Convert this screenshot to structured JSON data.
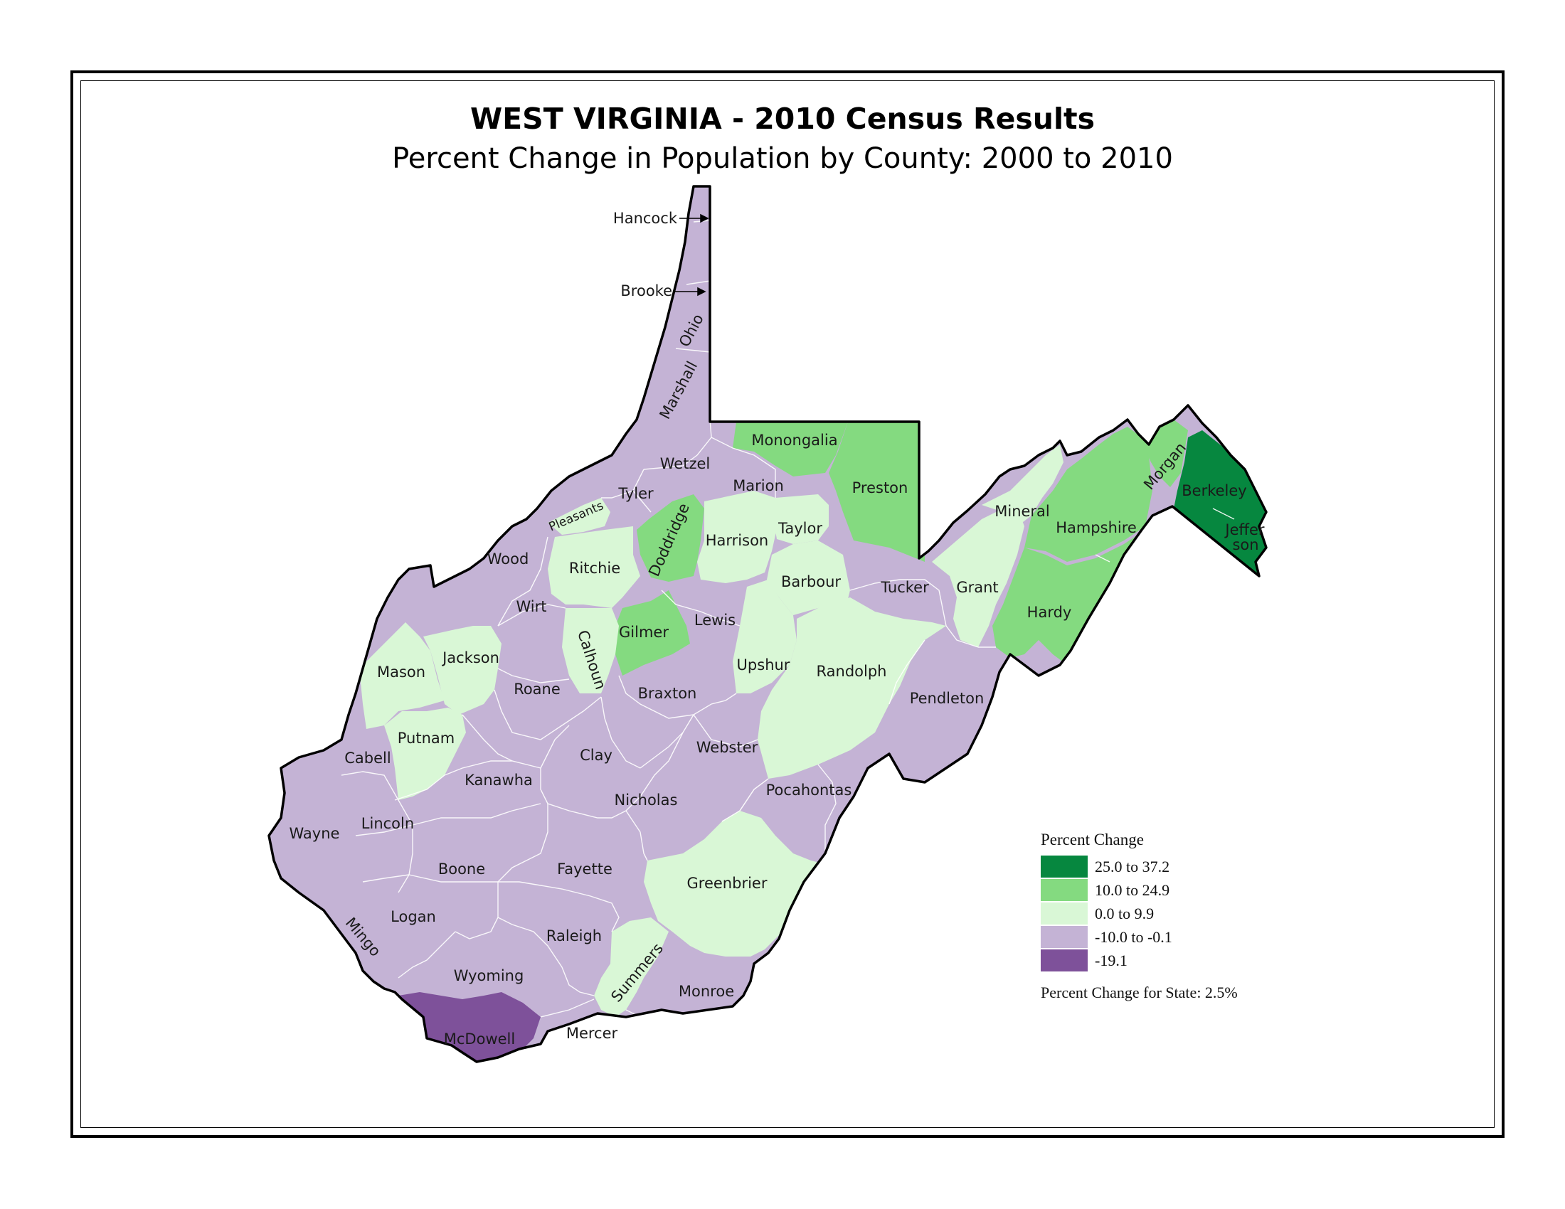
{
  "title": "WEST VIRGINIA - 2010 Census Results",
  "subtitle": "Percent Change in Population by County:  2000 to 2010",
  "colors": {
    "c1": "#06873f",
    "c2": "#84da80",
    "c3": "#d9f7d6",
    "c4": "#c4b3d5",
    "c5": "#7e519a",
    "border": "#ffffff",
    "outline": "#000000"
  },
  "legend": {
    "title": "Percent Change",
    "classes": [
      {
        "label": "25.0 to 37.2",
        "color": "#06873f"
      },
      {
        "label": "10.0 to 24.9",
        "color": "#84da80"
      },
      {
        "label": "0.0 to 9.9",
        "color": "#d9f7d6"
      },
      {
        "label": "-10.0 to -0.1",
        "color": "#c4b3d5"
      },
      {
        "label": "-19.1",
        "color": "#7e519a"
      }
    ],
    "state_change": "Percent Change for State:  2.5%"
  },
  "counties": {
    "hancock": "Hancock",
    "brooke": "Brooke",
    "ohio": "Ohio",
    "marshall": "Marshall",
    "wetzel": "Wetzel",
    "tyler": "Tyler",
    "pleasants": "Pleasants",
    "wood": "Wood",
    "ritchie": "Ritchie",
    "doddridge": "Doddridge",
    "harrison": "Harrison",
    "taylor": "Taylor",
    "marion": "Marion",
    "monongalia": "Monongalia",
    "preston": "Preston",
    "barbour": "Barbour",
    "tucker": "Tucker",
    "grant": "Grant",
    "mineral": "Mineral",
    "hampshire": "Hampshire",
    "morgan": "Morgan",
    "berkeley": "Berkeley",
    "jefferson_1": "Jeffer",
    "jefferson_2": "son",
    "hardy": "Hardy",
    "wirt": "Wirt",
    "calhoun": "Calhoun",
    "gilmer": "Gilmer",
    "lewis": "Lewis",
    "upshur": "Upshur",
    "randolph": "Randolph",
    "pendleton": "Pendleton",
    "jackson": "Jackson",
    "mason": "Mason",
    "roane": "Roane",
    "braxton": "Braxton",
    "putnam": "Putnam",
    "cabell": "Cabell",
    "kanawha": "Kanawha",
    "clay": "Clay",
    "webster": "Webster",
    "pocahontas": "Pocahontas",
    "nicholas": "Nicholas",
    "wayne": "Wayne",
    "lincoln": "Lincoln",
    "boone": "Boone",
    "fayette": "Fayette",
    "greenbrier": "Greenbrier",
    "logan": "Logan",
    "mingo": "Mingo",
    "raleigh": "Raleigh",
    "wyoming": "Wyoming",
    "summers": "Summers",
    "monroe": "Monroe",
    "mcdowell": "McDowell",
    "mercer": "Mercer"
  }
}
